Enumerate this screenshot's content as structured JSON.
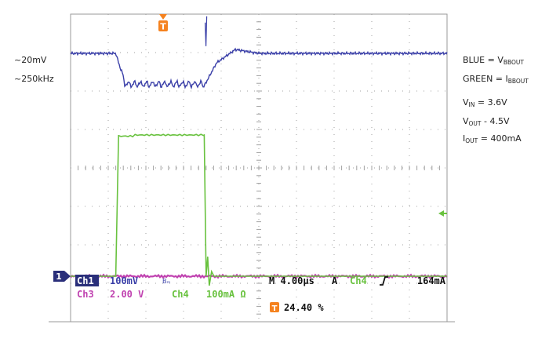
{
  "annotations": {
    "left_line1": "~20mV",
    "left_line2": "~250kHz",
    "legend_blue": {
      "prefix": "BLUE = V",
      "sub": "BBOUT"
    },
    "legend_green": {
      "prefix": "GREEN = I",
      "sub": "BBOUT"
    },
    "vin": {
      "prefix": "V",
      "sub": "IN",
      "suffix": " = 3.6V"
    },
    "vout": {
      "prefix": "V",
      "sub": "OUT",
      "suffix": " - 4.5V"
    },
    "iout": {
      "prefix": "I",
      "sub": "OUT",
      "suffix": " = 400mA"
    }
  },
  "scope_readout": {
    "ch1_label": "Ch1",
    "ch1_scale": "100mV",
    "bw_mark": "Bₘ",
    "timebase": "M 4.00µs",
    "acq_mode": "A",
    "trig_source": "Ch4",
    "trig_slope_icon": "rising-edge",
    "trig_level": "164mA",
    "ch3_label": "Ch3",
    "ch3_scale": "2.00 V",
    "ch4_label": "Ch4",
    "ch4_scale": "100mA Ω",
    "trig_pos_marker": "T",
    "trig_pos_value": "24.40 %",
    "ch1_ground_marker": "1"
  },
  "colors": {
    "grid": "#a0a0a0",
    "ch1_blue": "#3a3fa8",
    "ch3_magenta": "#c042b0",
    "ch4_green": "#69c23f",
    "trigger_orange": "#f5821f",
    "label_navy": "#2a2f7a"
  },
  "chart_data": {
    "type": "line",
    "title": "",
    "xlabel": "",
    "ylabel": "",
    "grid": true,
    "x_unit": "µs",
    "x_per_div": 4.0,
    "x_divisions": 10,
    "y_divisions": 8,
    "trigger_position_percent": 24.4,
    "series": [
      {
        "name": "BLUE = VBBOUT",
        "channel": "Ch1",
        "scale_per_div": "100mV",
        "description": "Output voltage: steady, dips ~0.8 div during load step with ~250kHz ripple, recovers with overshoot after load release",
        "x": [
          0,
          4.8,
          5.8,
          14,
          14.3,
          15.5,
          17.5,
          20,
          40
        ],
        "y_div": [
          0,
          0,
          -0.8,
          -0.8,
          -0.8,
          -0.25,
          0.1,
          0,
          0
        ]
      },
      {
        "name": "GREEN = IBBOUT",
        "channel": "Ch4",
        "scale_per_div": "100mA",
        "description": "Output current load step from ~0 to 400mA (4 div) then back to ~0",
        "x": [
          0,
          4.8,
          5.1,
          14.2,
          14.4,
          40
        ],
        "y_mA": [
          0,
          0,
          400,
          400,
          0,
          0
        ]
      },
      {
        "name": "Ch3",
        "channel": "Ch3",
        "scale_per_div": "2.00 V",
        "description": "Flat trace near bottom of screen",
        "x": [
          0,
          40
        ],
        "y_div": [
          0,
          0
        ]
      }
    ]
  }
}
